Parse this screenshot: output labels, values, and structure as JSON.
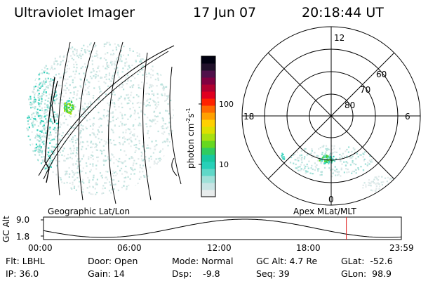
{
  "header": {
    "instrument": "Ultraviolet Imager",
    "date": "17 Jun 07",
    "time": "20:18:44 UT"
  },
  "colorbar": {
    "label": "photon cm-2s-1",
    "label_main": "photon cm",
    "label_sup1": "-2",
    "label_mid": "s",
    "label_sup2": "-1",
    "tick_labels": [
      "100",
      "10"
    ],
    "colors": [
      "#e8ecec",
      "#c8e4e4",
      "#9fe0d8",
      "#5fd8c8",
      "#27d0b8",
      "#18c8a0",
      "#30cc60",
      "#66d820",
      "#a8e010",
      "#dde000",
      "#ffd000",
      "#ffa000",
      "#ff6a00",
      "#ff2200",
      "#e00020",
      "#b00030",
      "#800040",
      "#50104a",
      "#20102a",
      "#000010"
    ]
  },
  "panels": {
    "left_label": "Geographic Lat/Lon",
    "right_label": "Apex MLat/MLT"
  },
  "polar": {
    "ring_labels": [
      "60",
      "70",
      "80"
    ],
    "mlt_labels": [
      "12",
      "18",
      "6",
      "0"
    ]
  },
  "altitude_plot": {
    "ylabel": "GC Alt",
    "ytick_labels": [
      "9.0",
      "1.8"
    ],
    "xtick_labels": [
      "00:00",
      "06:00",
      "12:00",
      "18:00",
      "23:59"
    ],
    "current_time_hours": 20.31
  },
  "footer": {
    "flt": "Flt: LBHL",
    "ip": "IP: 36.0",
    "door": "Door: Open",
    "gain": "Gain: 14",
    "mode": "Mode: Normal",
    "dsp": "Dsp:    -9.8",
    "gc_alt": "GC Alt: 4.7 Re",
    "seq": "Seq: 39",
    "glat": "GLat:  -52.6",
    "glon": "GLon:  98.9"
  }
}
